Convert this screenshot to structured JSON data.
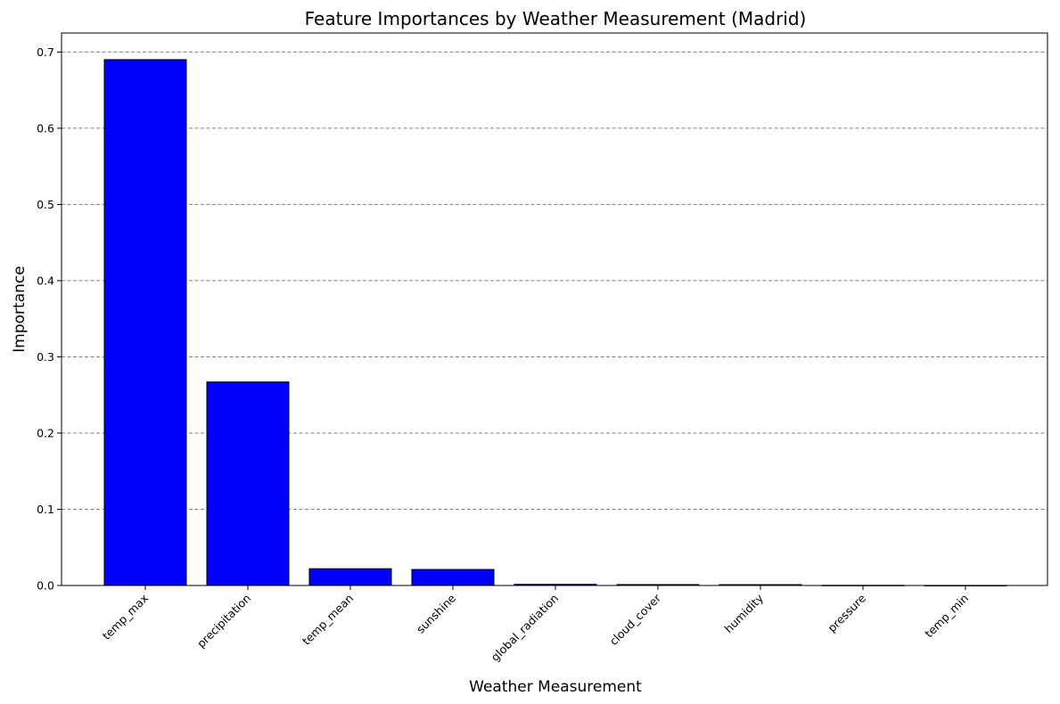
{
  "chart_data": {
    "type": "bar",
    "title": "Feature Importances by Weather Measurement (Madrid)",
    "xlabel": "Weather Measurement",
    "ylabel": "Importance",
    "categories": [
      "temp_max",
      "precipitation",
      "temp_mean",
      "sunshine",
      "global_radiation",
      "cloud_cover",
      "humidity",
      "pressure",
      "temp_min"
    ],
    "values": [
      0.69,
      0.267,
      0.022,
      0.021,
      0.0015,
      0.0012,
      0.0011,
      0.0002,
      0.0001
    ],
    "ylim": [
      0,
      0.725
    ],
    "yticks": [
      0.0,
      0.1,
      0.2,
      0.3,
      0.4,
      0.5,
      0.6,
      0.7
    ],
    "ytick_labels": [
      "0.0",
      "0.1",
      "0.2",
      "0.3",
      "0.4",
      "0.5",
      "0.6",
      "0.7"
    ],
    "grid": "y-dashed",
    "bar_color": "#0000ff",
    "edge_color": "#000000",
    "grid_color": "#808080"
  }
}
